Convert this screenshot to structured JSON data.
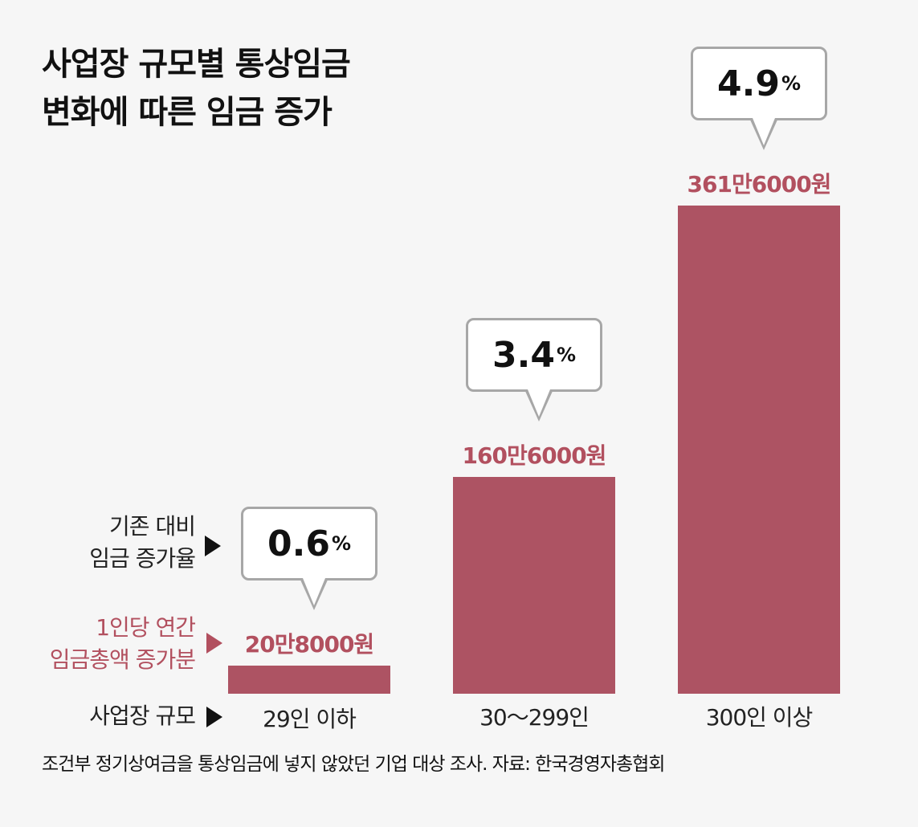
{
  "chart_data": {
    "type": "bar",
    "title": "사업장 규모별 통상임금\n변화에 따른 임금 증가",
    "title_lines": [
      "사업장 규모별 통상임금",
      "변화에 따른 임금 증가"
    ],
    "categories": [
      "29인 이하",
      "30～299인",
      "300인 이상"
    ],
    "series": [
      {
        "name": "1인당 연간 임금총액 증가분",
        "values": [
          208000,
          1606000,
          3616000
        ],
        "labels": [
          "20만8000원",
          "160만6000원",
          "361만6000원"
        ]
      },
      {
        "name": "기존 대비 임금 증가율",
        "values": [
          0.6,
          3.4,
          4.9
        ],
        "labels": [
          "0.6",
          "3.4",
          "4.9"
        ],
        "unit": "%"
      }
    ],
    "row_labels": {
      "rate": [
        "기존 대비",
        "임금 증가율"
      ],
      "amount": [
        "1인당 연간",
        "임금총액 증가분"
      ],
      "scale": "사업장 규모"
    },
    "footnote": "조건부 정기상여금을 통상임금에 넣지 않았던 기업 대상 조사.  자료: 한국경영자총협회",
    "colors": {
      "bar": "#ad5363",
      "amount_text": "#b2505f",
      "bubble_border": "#a7a7a7",
      "background": "#f6f6f6"
    },
    "ylim": [
      0,
      3616000
    ],
    "grid": false
  }
}
